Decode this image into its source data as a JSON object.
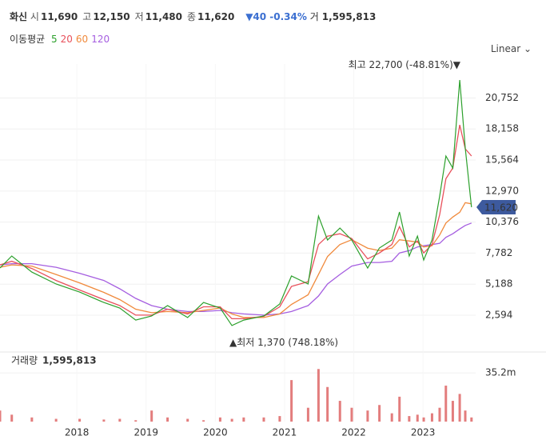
{
  "chart_data": {
    "type": "line",
    "stock_name": "화신",
    "quote": [
      {
        "label": "시",
        "value": "11,690"
      },
      {
        "label": "고",
        "value": "12,150"
      },
      {
        "label": "저",
        "value": "11,480"
      },
      {
        "label": "종",
        "value": "11,620"
      }
    ],
    "change": "▼40 -0.34%",
    "volume_quote": {
      "label": "거",
      "value": "1,595,813"
    },
    "ma_title": "이동평균",
    "scale_mode": "Linear",
    "x": [
      2016.89,
      2017.06,
      2017.35,
      2017.7,
      2018.04,
      2018.39,
      2018.62,
      2018.85,
      2019.08,
      2019.31,
      2019.6,
      2019.83,
      2020.07,
      2020.24,
      2020.41,
      2020.7,
      2020.93,
      2021.1,
      2021.34,
      2021.49,
      2021.62,
      2021.8,
      2021.97,
      2022.2,
      2022.37,
      2022.55,
      2022.66,
      2022.8,
      2022.92,
      2023.01,
      2023.13,
      2023.24,
      2023.33,
      2023.43,
      2023.53,
      2023.61,
      2023.7
    ],
    "series": [
      {
        "name": "5",
        "color": "#2ca02c",
        "values": [
          6540,
          7540,
          6200,
          5200,
          4530,
          3660,
          3200,
          2190,
          2530,
          3400,
          2400,
          3660,
          3200,
          1730,
          2190,
          2530,
          3530,
          5870,
          5200,
          10880,
          8880,
          9880,
          8880,
          6540,
          8210,
          8880,
          11220,
          7540,
          9210,
          7210,
          8880,
          12550,
          15900,
          14890,
          22250,
          16560,
          11620
        ]
      },
      {
        "name": "20",
        "color": "#e8505b",
        "values": [
          6800,
          7100,
          6500,
          5500,
          4700,
          3900,
          3400,
          2600,
          2600,
          3100,
          2700,
          3300,
          3300,
          2300,
          2300,
          2500,
          3300,
          5000,
          5400,
          8500,
          9200,
          9400,
          9000,
          7300,
          7800,
          8500,
          10000,
          8300,
          8800,
          7800,
          8500,
          11000,
          14000,
          14900,
          18500,
          16500,
          15900
        ]
      },
      {
        "name": "60",
        "color": "#f08a3c",
        "values": [
          6600,
          6800,
          6700,
          6000,
          5300,
          4500,
          3900,
          3100,
          2800,
          2900,
          2800,
          3000,
          3200,
          2700,
          2400,
          2400,
          2700,
          3500,
          4300,
          6000,
          7500,
          8500,
          8900,
          8200,
          8000,
          8200,
          8900,
          8800,
          8700,
          8300,
          8400,
          9300,
          10300,
          10800,
          11200,
          12000,
          11900
        ]
      },
      {
        "name": "120",
        "color": "#a55ee0",
        "values": [
          6800,
          6900,
          6900,
          6600,
          6100,
          5500,
          4800,
          4000,
          3400,
          3100,
          2900,
          2900,
          3000,
          2800,
          2700,
          2600,
          2700,
          2900,
          3400,
          4200,
          5200,
          6000,
          6700,
          7000,
          7000,
          7100,
          7800,
          8000,
          8300,
          8400,
          8500,
          8600,
          9100,
          9400,
          9800,
          10100,
          10300
        ]
      }
    ],
    "xlim": [
      2016.89,
      2023.76
    ],
    "xticks": [
      2018,
      2019,
      2020,
      2021,
      2022,
      2023
    ],
    "ylim": [
      -480,
      23590
    ],
    "yticks": [
      {
        "value": 2594,
        "label": "2,594"
      },
      {
        "value": 5188,
        "label": "5,188"
      },
      {
        "value": 7782,
        "label": "7,782"
      },
      {
        "value": 10376,
        "label": "10,376"
      },
      {
        "value": 12970,
        "label": "12,970"
      },
      {
        "value": 15564,
        "label": "15,564"
      },
      {
        "value": 18158,
        "label": "18,158"
      },
      {
        "value": 20752,
        "label": "20,752"
      }
    ],
    "grid": true,
    "last_price": {
      "value": 11620,
      "label": "11,620"
    },
    "high": {
      "value": 22700,
      "label": "최고 22,700 (-48.81%)▼"
    },
    "low": {
      "value": 1370,
      "label": "▲최저 1,370 (748.18%)"
    },
    "volume": {
      "title": "거래량",
      "total": "1,595,813",
      "color": "#e37d7d",
      "values": [
        8,
        5,
        3,
        2,
        2,
        1.5,
        2,
        1,
        8,
        3,
        2,
        1,
        3,
        2,
        3,
        3,
        4,
        30,
        10,
        38,
        25,
        15,
        10,
        8,
        12,
        6,
        18,
        4,
        5,
        3,
        6,
        10,
        26,
        15,
        20,
        8,
        3
      ],
      "ylim": [
        0,
        50.3
      ],
      "yticks": [
        {
          "value": 35.2,
          "label": "35.2m"
        }
      ]
    }
  }
}
